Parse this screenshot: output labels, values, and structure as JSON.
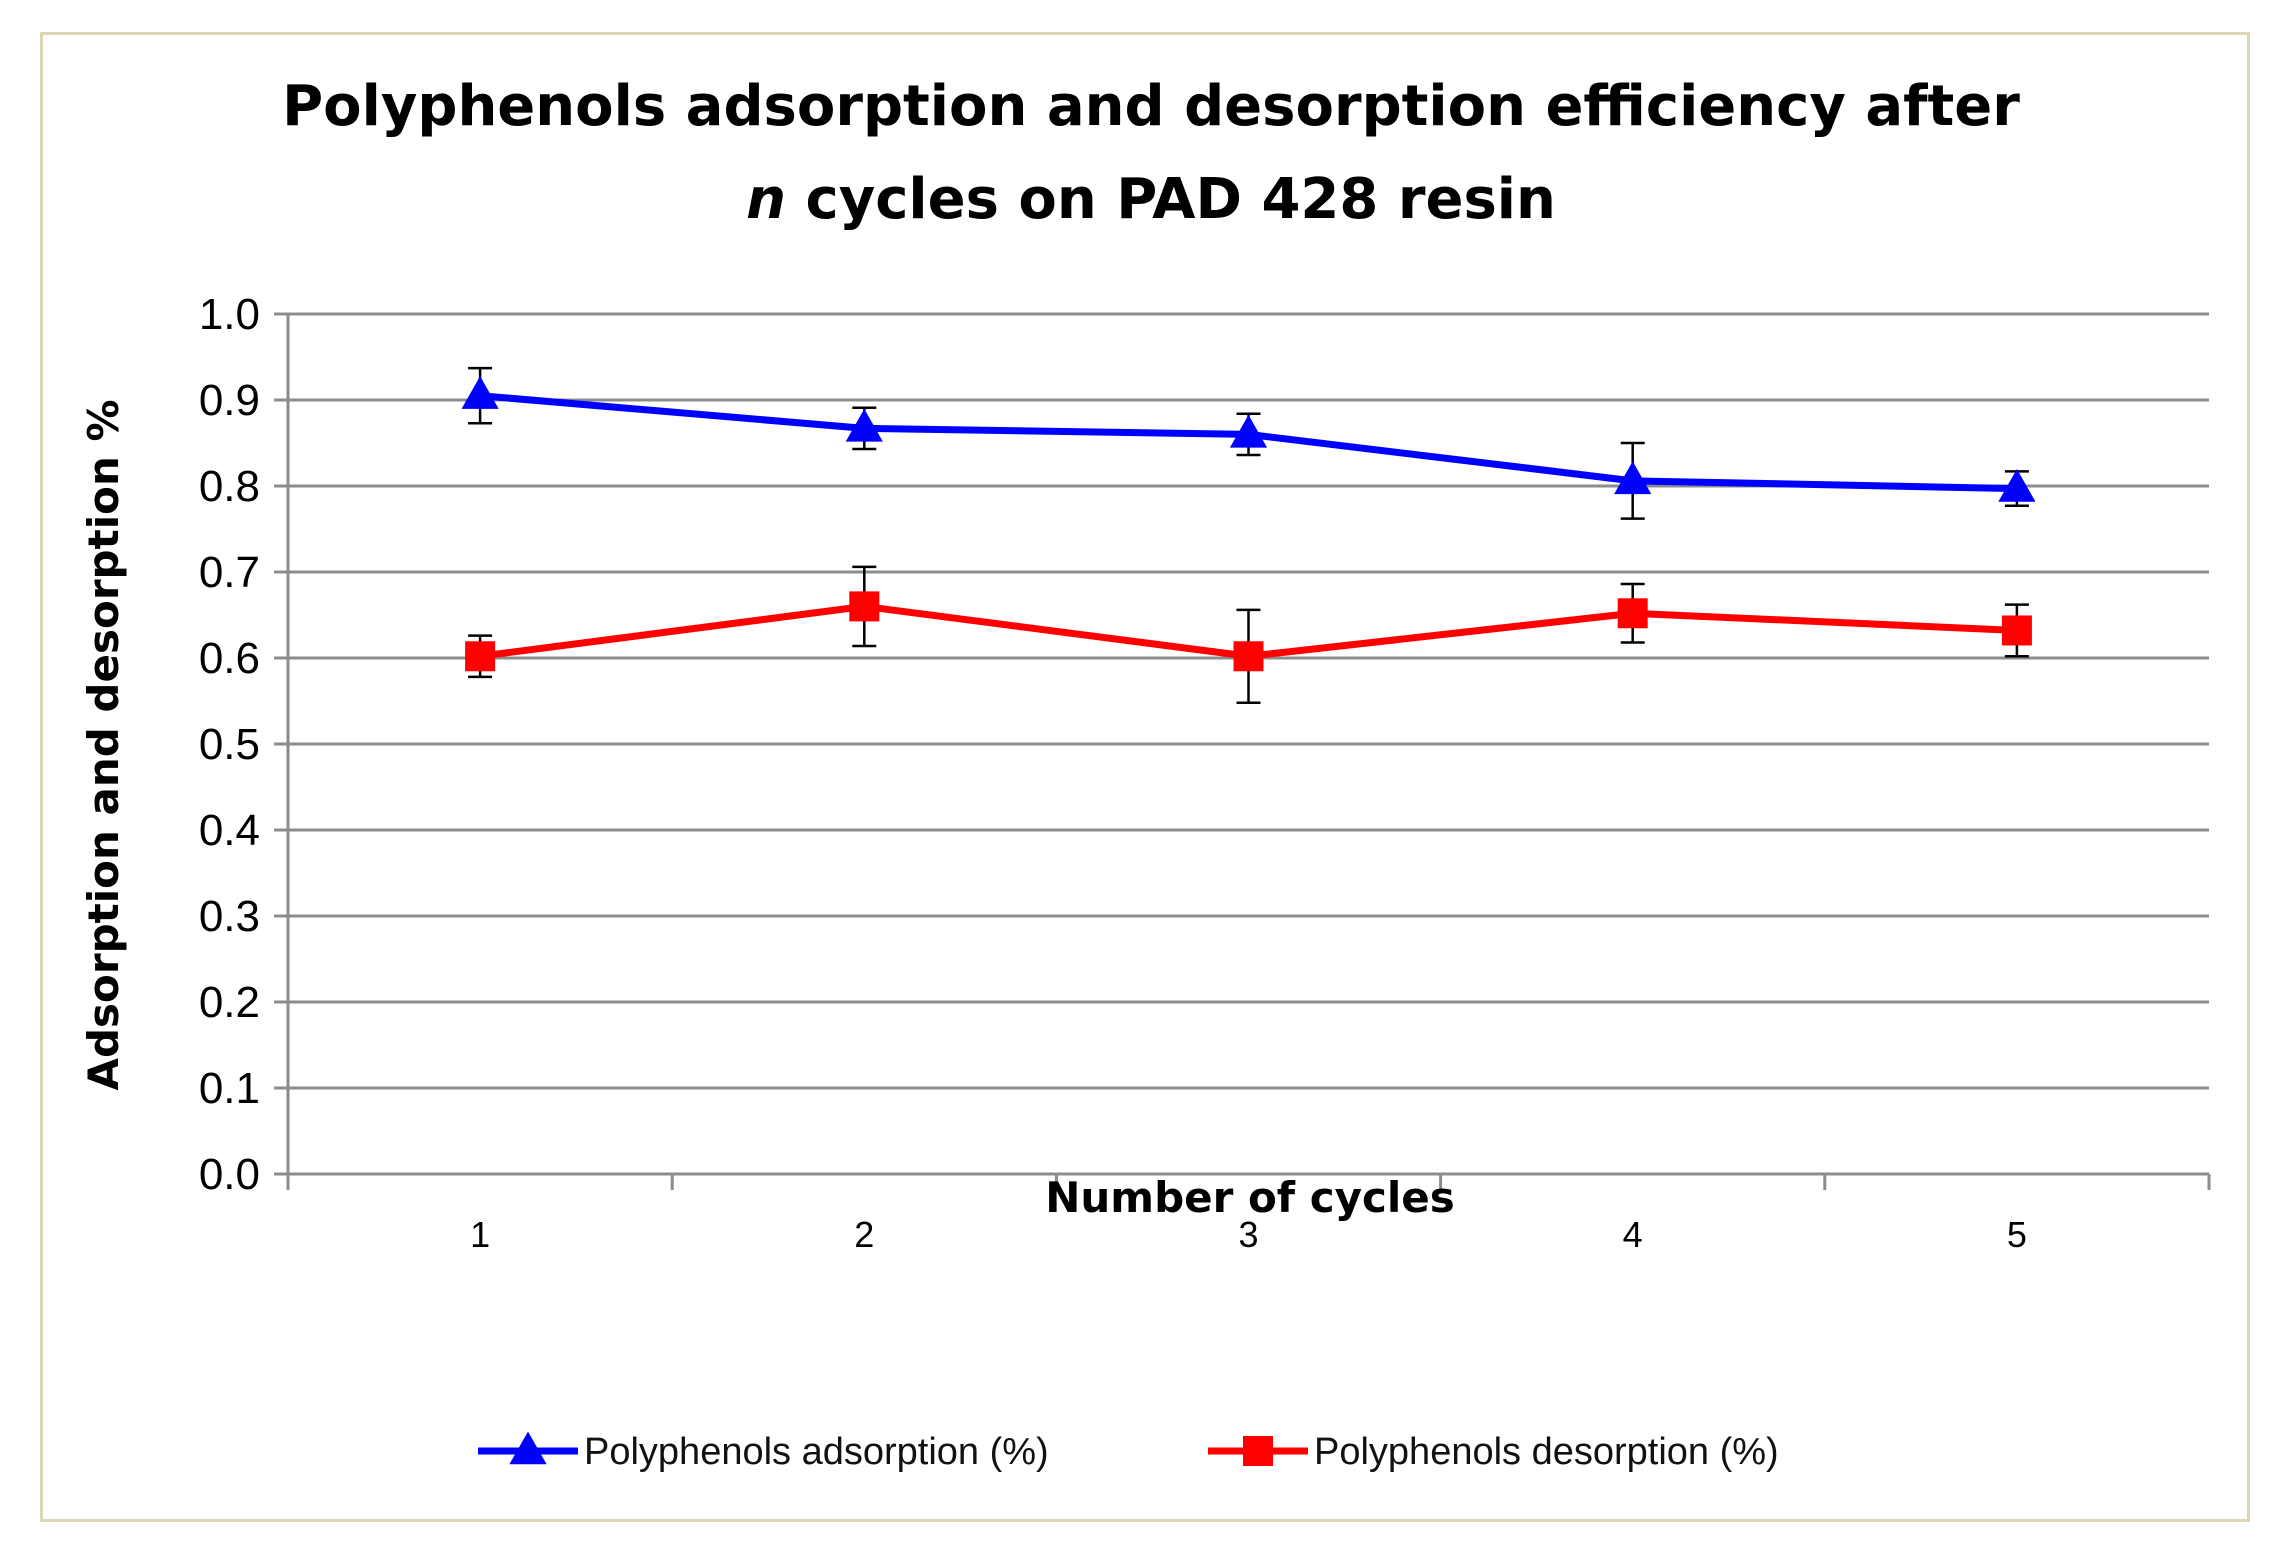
{
  "chart_data": {
    "type": "line",
    "title_line1": "Polyphenols  adsorption  and desorption  efficiency after",
    "title_line2_italic": "n",
    "title_line2_rest": " cycles on PAD 428 resin",
    "xlabel": "Number of cycles",
    "ylabel": "Adsorption and desorption %",
    "categories": [
      "1",
      "2",
      "3",
      "4",
      "5"
    ],
    "ylim": [
      0.0,
      1.0
    ],
    "yticks": [
      "0.0",
      "0.1",
      "0.2",
      "0.3",
      "0.4",
      "0.5",
      "0.6",
      "0.7",
      "0.8",
      "0.9",
      "1.0"
    ],
    "grid": true,
    "legend_position": "bottom",
    "series": [
      {
        "name": "Polyphenols adsorption (%)",
        "color": "#0000ff",
        "marker": "triangle",
        "values": [
          0.905,
          0.867,
          0.86,
          0.806,
          0.797
        ],
        "error": [
          0.032,
          0.024,
          0.024,
          0.044,
          0.02
        ]
      },
      {
        "name": "Polyphenols desorption (%)",
        "color": "#ff0000",
        "marker": "square",
        "values": [
          0.602,
          0.66,
          0.602,
          0.652,
          0.632
        ],
        "error": [
          0.024,
          0.046,
          0.054,
          0.034,
          0.03
        ]
      }
    ]
  }
}
